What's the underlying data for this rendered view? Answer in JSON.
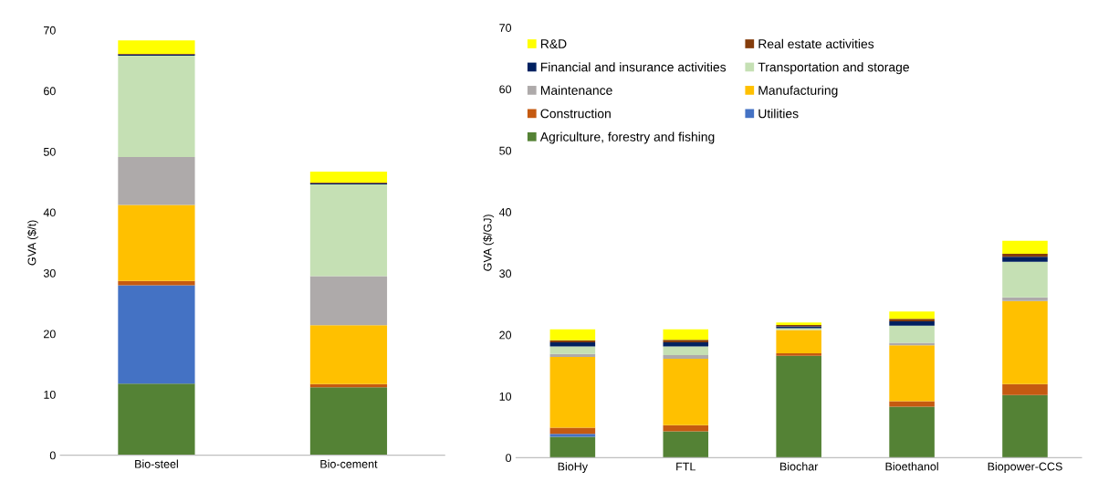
{
  "chart_data": [
    {
      "type": "bar",
      "stacked": true,
      "ylabel": "GVA ($/t)",
      "categories": [
        "Bio-steel",
        "Bio-cement"
      ],
      "ylim": [
        0,
        70
      ],
      "yticks": [
        {
          "value": 0,
          "label": "0"
        },
        {
          "value": 10,
          "label": "10"
        },
        {
          "value": 20,
          "label": "20"
        },
        {
          "value": 30,
          "label": "30"
        },
        {
          "value": 40,
          "label": "40"
        },
        {
          "value": 50,
          "label": "50"
        },
        {
          "value": 60,
          "label": "60"
        },
        {
          "value": 70,
          "label": "70"
        }
      ],
      "grid": false,
      "series": [
        {
          "color": "#548235",
          "values": [
            11.8,
            11.2
          ]
        },
        {
          "color": "#4472c4",
          "values": [
            16.2,
            0
          ]
        },
        {
          "color": "#c55a11",
          "values": [
            0.7,
            0.5
          ]
        },
        {
          "color": "#ffc000",
          "values": [
            12.5,
            9.7
          ]
        },
        {
          "color": "#aeaaaa",
          "values": [
            7.9,
            8.1
          ]
        },
        {
          "color": "#c5e0b4",
          "values": [
            16.7,
            15.1
          ]
        },
        {
          "color": "#002060",
          "values": [
            0.2,
            0.2
          ]
        },
        {
          "color": "#843c0c",
          "values": [
            0.1,
            0.1
          ]
        },
        {
          "color": "#ffff00",
          "values": [
            2.2,
            1.8
          ]
        }
      ]
    },
    {
      "type": "bar",
      "stacked": true,
      "ylabel": "GVA ($/GJ)",
      "categories": [
        "BioHy",
        "FTL",
        "Biochar",
        "Bioethanol",
        "Biopower-CCS"
      ],
      "ylim": [
        0,
        70
      ],
      "yticks": [
        0,
        10,
        20,
        30,
        40,
        50,
        60,
        70
      ],
      "grid": false,
      "legend": "top left",
      "series": [
        {
          "name": "Agriculture, forestry and fishing",
          "color": "#548235",
          "values": [
            3.4,
            4.3,
            16.6,
            8.3,
            10.2
          ]
        },
        {
          "name": "Utilities",
          "color": "#4472c4",
          "values": [
            0.5,
            0,
            0,
            0,
            0
          ]
        },
        {
          "name": "Construction",
          "color": "#c55a11",
          "values": [
            1.0,
            1.0,
            0.4,
            0.9,
            1.8
          ]
        },
        {
          "name": "Manufacturing",
          "color": "#ffc000",
          "values": [
            11.5,
            10.8,
            3.8,
            9.1,
            13.5
          ]
        },
        {
          "name": "Maintenance",
          "color": "#aeaaaa",
          "values": [
            0.5,
            0.6,
            null,
            0.4,
            0.6
          ]
        },
        {
          "name": "Transportation and storage",
          "color": "#c5e0b4",
          "values": [
            1.2,
            1.4,
            0.3,
            2.8,
            5.8
          ]
        },
        {
          "name": "Financial and insurance activities",
          "color": "#002060",
          "values": [
            0.7,
            0.7,
            0.3,
            0.7,
            0.8
          ]
        },
        {
          "name": "Real estate activities",
          "color": "#843c0c",
          "values": [
            0.3,
            0.4,
            0.2,
            0.4,
            0.5
          ]
        },
        {
          "name": "R&D",
          "color": "#ffff00",
          "values": [
            1.8,
            1.7,
            0.4,
            1.2,
            2.1
          ]
        }
      ]
    }
  ]
}
